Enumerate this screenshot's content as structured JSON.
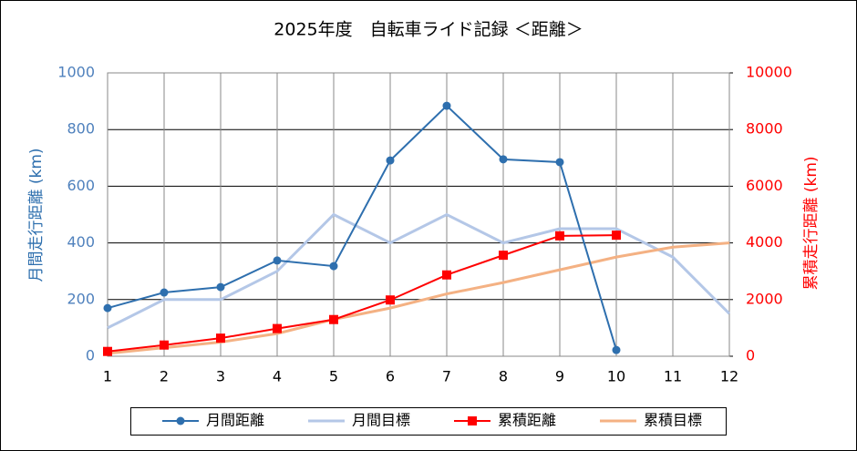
{
  "chart_data": {
    "type": "line",
    "title": "2025年度　自転車ライド記録 ＜距離＞",
    "ylabel": "月間走行距離 (km)",
    "y2label": "累積走行距離 (km)",
    "x": [
      1,
      2,
      3,
      4,
      5,
      6,
      7,
      8,
      9,
      10,
      11,
      12
    ],
    "xlim": [
      1,
      12
    ],
    "xticks": [
      1,
      2,
      3,
      4,
      5,
      6,
      7,
      8,
      9,
      10,
      11,
      12
    ],
    "ylim": [
      0,
      1000
    ],
    "yticks": [
      0,
      200,
      400,
      600,
      800,
      1000
    ],
    "y2lim": [
      0,
      10000
    ],
    "y2ticks": [
      0,
      2000,
      4000,
      6000,
      8000,
      10000
    ],
    "grid": true,
    "legend": "bottom",
    "series": [
      {
        "name": "月間距離",
        "color": "#2e6fae",
        "marker": "circle",
        "values": [
          170,
          225,
          244,
          338,
          318,
          691,
          884,
          695,
          685,
          22,
          null,
          null
        ]
      },
      {
        "name": "月間目標",
        "color": "#b4c7e7",
        "values": [
          100,
          200,
          200,
          300,
          500,
          400,
          500,
          400,
          450,
          450,
          350,
          150
        ]
      },
      {
        "name": "累積距離",
        "color": "#ff0000",
        "marker": "square",
        "axis": "y2",
        "values": [
          170,
          395,
          639,
          977,
          1295,
          1986,
          2870,
          3565,
          4250,
          4272,
          null,
          null
        ]
      },
      {
        "name": "累積目標",
        "color": "#f4b183",
        "axis": "y2",
        "values": [
          100,
          300,
          500,
          800,
          1300,
          1700,
          2200,
          2600,
          3050,
          3500,
          3850,
          4000
        ]
      }
    ]
  }
}
